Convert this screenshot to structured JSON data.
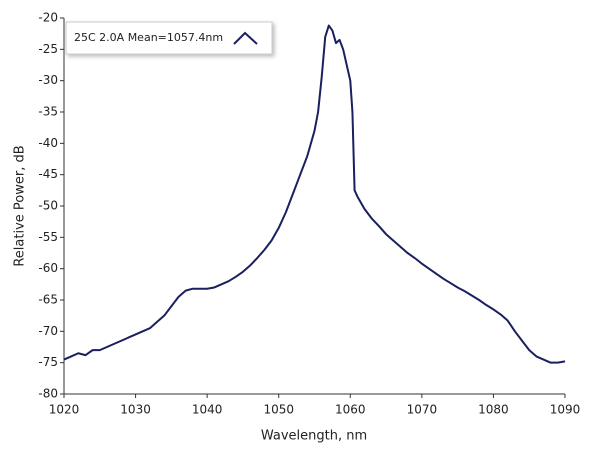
{
  "chart_data": {
    "type": "line",
    "x_label": "Wavelength, nm",
    "y_label": "Relative Power, dB",
    "x": [
      1020,
      1021,
      1022,
      1023,
      1024,
      1025,
      1026,
      1027,
      1028,
      1029,
      1030,
      1031,
      1032,
      1033,
      1034,
      1035,
      1036,
      1037,
      1038,
      1039,
      1040,
      1041,
      1042,
      1043,
      1044,
      1045,
      1046,
      1047,
      1048,
      1049,
      1050,
      1051,
      1052,
      1053,
      1054,
      1055,
      1055.5,
      1056,
      1056.5,
      1057,
      1057.5,
      1058,
      1058.5,
      1059,
      1059.5,
      1060,
      1060.3,
      1060.6,
      1061,
      1062,
      1063,
      1064,
      1065,
      1066,
      1067,
      1068,
      1069,
      1070,
      1071,
      1072,
      1073,
      1074,
      1075,
      1076,
      1077,
      1078,
      1079,
      1080,
      1081,
      1082,
      1083,
      1084,
      1085,
      1086,
      1087,
      1088,
      1089,
      1090
    ],
    "series": [
      {
        "name": "25C 2.0A Mean=1057.4nm",
        "color": "#1a1f5e",
        "values": [
          -74.5,
          -74,
          -73.5,
          -73.8,
          -73,
          -73,
          -72.5,
          -72,
          -71.5,
          -71,
          -70.5,
          -70,
          -69.5,
          -68.5,
          -67.5,
          -66,
          -64.5,
          -63.5,
          -63.2,
          -63.2,
          -63.2,
          -63,
          -62.5,
          -62,
          -61.3,
          -60.5,
          -59.5,
          -58.3,
          -57,
          -55.5,
          -53.5,
          -51,
          -48,
          -45,
          -42,
          -38,
          -35,
          -29.5,
          -23,
          -21.2,
          -22,
          -24,
          -23.5,
          -25,
          -27.5,
          -30,
          -35,
          -47.5,
          -48.5,
          -50.5,
          -52,
          -53.2,
          -54.5,
          -55.5,
          -56.5,
          -57.5,
          -58.3,
          -59.2,
          -60,
          -60.8,
          -61.6,
          -62.3,
          -63,
          -63.6,
          -64.3,
          -65,
          -65.8,
          -66.5,
          -67.3,
          -68.3,
          -70,
          -71.5,
          -73,
          -74,
          -74.5,
          -75,
          -75,
          -74.8
        ]
      }
    ],
    "xlim": [
      1020,
      1090
    ],
    "xticks": [
      1020,
      1030,
      1040,
      1050,
      1060,
      1070,
      1080,
      1090
    ],
    "ylim": [
      -80,
      -20
    ],
    "yticks": [
      -20,
      -25,
      -30,
      -35,
      -40,
      -45,
      -50,
      -55,
      -60,
      -65,
      -70,
      -75,
      -80
    ],
    "legend": "upper left",
    "grid": false
  }
}
